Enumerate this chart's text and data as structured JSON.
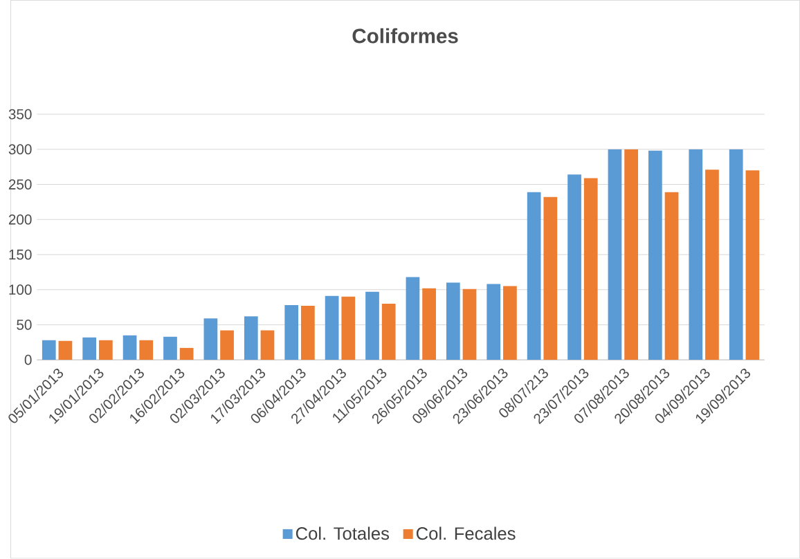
{
  "chart_data": {
    "type": "bar",
    "title": "Coliformes",
    "categories": [
      "05/01/2013",
      "19/01/2013",
      "02/02/2013",
      "16/02/2013",
      "02/03/2013",
      "17/03/2013",
      "06/04/2013",
      "27/04/2013",
      "11/05/2013",
      "26/05/2013",
      "09/06/2013",
      "23/06/2013",
      "08/07/213",
      "23/07/2013",
      "07/08/2013",
      "20/08/2013",
      "04/09/2013",
      "19/09/2013"
    ],
    "series": [
      {
        "name": "Col. Totales",
        "color": "#5b9bd5",
        "values": [
          28,
          32,
          35,
          33,
          59,
          62,
          78,
          91,
          97,
          118,
          110,
          108,
          239,
          264,
          300,
          298,
          300,
          300
        ]
      },
      {
        "name": "Col. Fecales",
        "color": "#ed7d31",
        "values": [
          27,
          28,
          28,
          17,
          42,
          42,
          77,
          90,
          80,
          102,
          101,
          105,
          232,
          259,
          300,
          239,
          271,
          270
        ]
      }
    ],
    "ylim": [
      0,
      350
    ],
    "yticks": [
      0,
      50,
      100,
      150,
      200,
      250,
      300,
      350
    ],
    "grid": "y",
    "legend": "bottom"
  }
}
